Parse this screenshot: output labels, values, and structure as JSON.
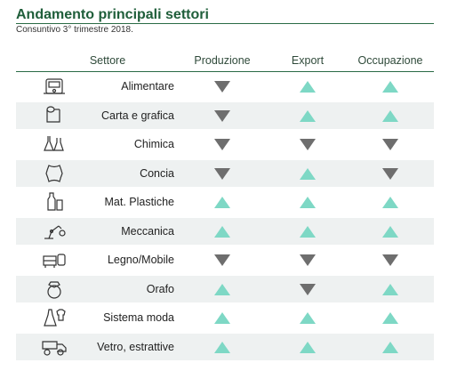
{
  "title": "Andamento principali settori",
  "subtitle": "Consuntivo 3° trimestre 2018.",
  "headers": {
    "settore": "Settore",
    "produzione": "Produzione",
    "export": "Export",
    "occupazione": "Occupazione"
  },
  "colors": {
    "up": "#7ed8c5",
    "down": "#6e6e6e",
    "accent": "#1f5e3a"
  },
  "rows": [
    {
      "label": "Alimentare",
      "icon": "food-processor-icon",
      "produzione": "down",
      "export": "up",
      "occupazione": "up"
    },
    {
      "label": "Carta e grafica",
      "icon": "paper-roll-icon",
      "produzione": "down",
      "export": "up",
      "occupazione": "up"
    },
    {
      "label": "Chimica",
      "icon": "flask-icon",
      "produzione": "down",
      "export": "down",
      "occupazione": "down"
    },
    {
      "label": "Concia",
      "icon": "hide-icon",
      "produzione": "down",
      "export": "up",
      "occupazione": "down"
    },
    {
      "label": "Mat. Plastiche",
      "icon": "bottle-icon",
      "produzione": "up",
      "export": "up",
      "occupazione": "up"
    },
    {
      "label": "Meccanica",
      "icon": "robot-arm-icon",
      "produzione": "up",
      "export": "up",
      "occupazione": "up"
    },
    {
      "label": "Legno/Mobile",
      "icon": "furniture-icon",
      "produzione": "down",
      "export": "down",
      "occupazione": "down"
    },
    {
      "label": "Orafo",
      "icon": "ring-icon",
      "produzione": "up",
      "export": "down",
      "occupazione": "up"
    },
    {
      "label": "Sistema moda",
      "icon": "dress-icon",
      "produzione": "up",
      "export": "up",
      "occupazione": "up"
    },
    {
      "label": "Vetro, estrattive",
      "icon": "dump-truck-icon",
      "produzione": "up",
      "export": "up",
      "occupazione": "up"
    }
  ]
}
